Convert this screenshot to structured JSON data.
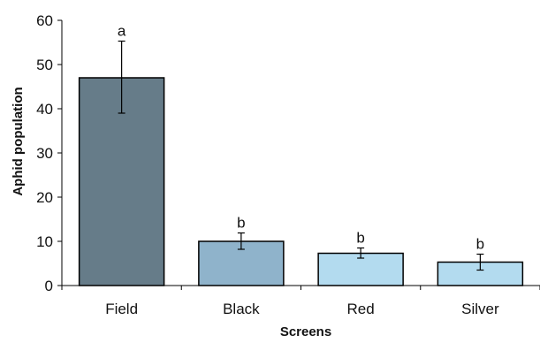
{
  "chart_data": {
    "type": "bar",
    "title": "",
    "xlabel": "Screens",
    "ylabel": "Aphid population",
    "categories": [
      "Field",
      "Black",
      "Red",
      "Silver"
    ],
    "values": [
      47,
      10,
      7.3,
      5.3
    ],
    "error_low": [
      39,
      8.2,
      6.2,
      3.5
    ],
    "error_high": [
      55.3,
      11.9,
      8.5,
      7.1
    ],
    "significance_letters": [
      "a",
      "b",
      "b",
      "b"
    ],
    "ylim": [
      0,
      60
    ],
    "yticks": [
      0,
      10,
      20,
      30,
      40,
      50,
      60
    ],
    "grid": false,
    "legend": "none",
    "colors": [
      "#667c89",
      "#8fb3cb",
      "#b3dbef",
      "#b3dbef"
    ]
  }
}
